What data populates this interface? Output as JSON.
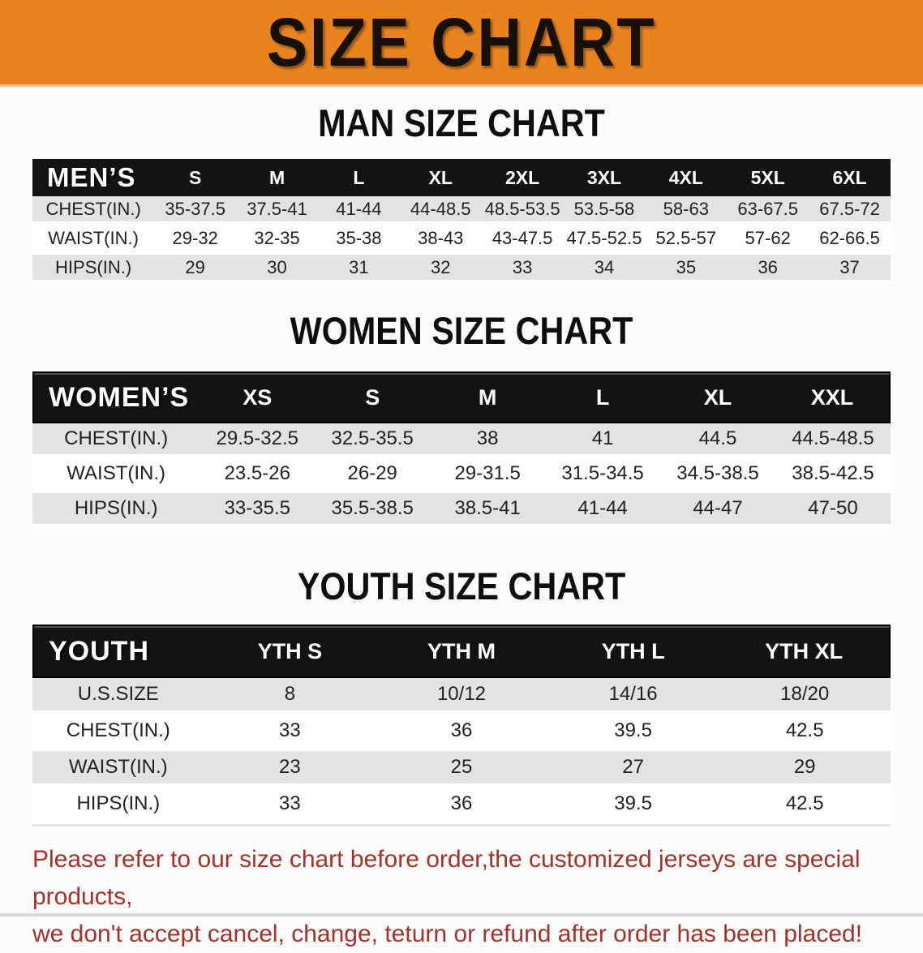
{
  "banner": {
    "title": "SIZE CHART",
    "bg_color": "#E8831E",
    "text_color": "#171006"
  },
  "chart_data": [
    {
      "type": "table",
      "title": "MAN SIZE CHART",
      "group_label": "MEN’S",
      "columns": [
        "S",
        "M",
        "L",
        "XL",
        "2XL",
        "3XL",
        "4XL",
        "5XL",
        "6XL"
      ],
      "rows": [
        {
          "label": "CHEST(IN.)",
          "values": [
            "35-37.5",
            "37.5-41",
            "41-44",
            "44-48.5",
            "48.5-53.5",
            "53.5-58",
            "58-63",
            "63-67.5",
            "67.5-72"
          ]
        },
        {
          "label": "WAIST(IN.)",
          "values": [
            "29-32",
            "32-35",
            "35-38",
            "38-43",
            "43-47.5",
            "47.5-52.5",
            "52.5-57",
            "57-62",
            "62-66.5"
          ]
        },
        {
          "label": "HIPS(IN.)",
          "values": [
            "29",
            "30",
            "31",
            "32",
            "33",
            "34",
            "35",
            "36",
            "37"
          ]
        }
      ]
    },
    {
      "type": "table",
      "title": "WOMEN SIZE CHART",
      "group_label": "WOMEN’S",
      "columns": [
        "XS",
        "S",
        "M",
        "L",
        "XL",
        "XXL"
      ],
      "rows": [
        {
          "label": "CHEST(IN.)",
          "values": [
            "29.5-32.5",
            "32.5-35.5",
            "38",
            "41",
            "44.5",
            "44.5-48.5"
          ]
        },
        {
          "label": "WAIST(IN.)",
          "values": [
            "23.5-26",
            "26-29",
            "29-31.5",
            "31.5-34.5",
            "34.5-38.5",
            "38.5-42.5"
          ]
        },
        {
          "label": "HIPS(IN.)",
          "values": [
            "33-35.5",
            "35.5-38.5",
            "38.5-41",
            "41-44",
            "44-47",
            "47-50"
          ]
        }
      ]
    },
    {
      "type": "table",
      "title": "YOUTH SIZE CHART",
      "group_label": "YOUTH",
      "columns": [
        "YTH S",
        "YTH M",
        "YTH L",
        "YTH XL"
      ],
      "rows": [
        {
          "label": "U.S.SIZE",
          "values": [
            "8",
            "10/12",
            "14/16",
            "18/20"
          ]
        },
        {
          "label": "CHEST(IN.)",
          "values": [
            "33",
            "36",
            "39.5",
            "42.5"
          ]
        },
        {
          "label": "WAIST(IN.)",
          "values": [
            "23",
            "25",
            "27",
            "29"
          ]
        },
        {
          "label": "HIPS(IN.)",
          "values": [
            "33",
            "36",
            "39.5",
            "42.5"
          ]
        }
      ]
    }
  ],
  "footnote": {
    "lines": [
      "Please refer to our size chart before order,the customized jerseys are special products,",
      "we don't accept cancel, change, teturn or refund after order has been placed!"
    ],
    "color": "#A5322A"
  },
  "colors": {
    "header_bar": "#131313",
    "stripe_gray": "#E3E3E3"
  }
}
